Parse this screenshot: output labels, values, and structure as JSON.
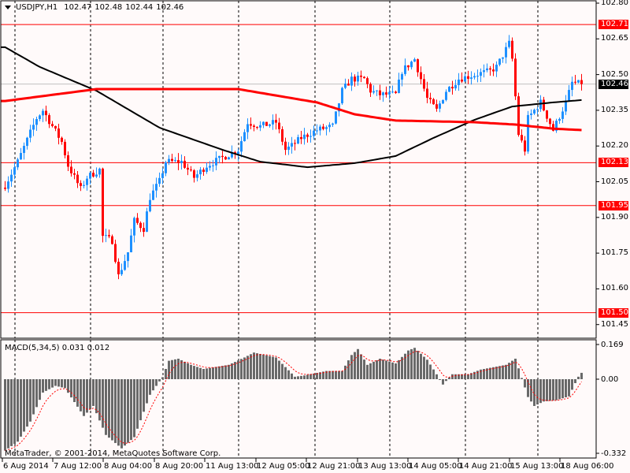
{
  "header": {
    "symbol": "USDJPY,H1",
    "open": "102.47",
    "high": "102.48",
    "low": "102.44",
    "close": "102.46"
  },
  "price_axis": [
    "102.80",
    "102.65",
    "102.50",
    "102.35",
    "102.20",
    "102.05",
    "101.90",
    "101.75",
    "101.60",
    "101.45"
  ],
  "hlines": [
    {
      "label": "102.71",
      "price": 102.71,
      "color": "#ff0000"
    },
    {
      "label": "102.13",
      "price": 102.13,
      "color": "#ff0000"
    },
    {
      "label": "101.95",
      "price": 101.95,
      "color": "#ff0000"
    },
    {
      "label": "101.50",
      "price": 101.5,
      "color": "#ff0000"
    }
  ],
  "current_price": {
    "label": "102.46",
    "price": 102.46,
    "color": "#000000",
    "line_color": "#c0c0c0"
  },
  "time_axis": [
    "6 Aug 2014",
    "7 Aug 12:00",
    "8 Aug 04:00",
    "8 Aug 20:00",
    "11 Aug 13:00",
    "12 Aug 05:00",
    "12 Aug 21:00",
    "13 Aug 13:00",
    "14 Aug 05:00",
    "14 Aug 21:00",
    "15 Aug 13:00",
    "18 Aug 06:00"
  ],
  "macd": {
    "label": "MACD(5,34,5) 0.031 0.012",
    "axis": [
      "0.169",
      "0.00",
      "-0.332"
    ]
  },
  "copyright": "MetaTrader, © 2001-2014, MetaQuotes Software Corp.",
  "colors": {
    "bull": "#1e90ff",
    "bear": "#ff0000",
    "ma_slow": "#ff0000",
    "ma_fast": "#000000",
    "hist": "#696969",
    "signal": "#ff0000",
    "grid": "#000000"
  },
  "chart_data": {
    "type": "candlestick",
    "title": "USDJPY,H1",
    "ylim": [
      101.42,
      102.81
    ],
    "close_anchors": [
      [
        0,
        102.035
      ],
      [
        4,
        102.134
      ],
      [
        10,
        102.317
      ],
      [
        12,
        102.35
      ],
      [
        18,
        102.217
      ],
      [
        20,
        102.118
      ],
      [
        24,
        102.019
      ],
      [
        26,
        102.068
      ],
      [
        30,
        102.101
      ],
      [
        31,
        101.82
      ],
      [
        34,
        101.803
      ],
      [
        36,
        101.654
      ],
      [
        39,
        101.754
      ],
      [
        41,
        101.886
      ],
      [
        44,
        101.853
      ],
      [
        46,
        101.985
      ],
      [
        49,
        102.052
      ],
      [
        51,
        102.134
      ],
      [
        56,
        102.134
      ],
      [
        60,
        102.068
      ],
      [
        64,
        102.118
      ],
      [
        69,
        102.151
      ],
      [
        74,
        102.184
      ],
      [
        77,
        102.3
      ],
      [
        81,
        102.283
      ],
      [
        86,
        102.3
      ],
      [
        89,
        102.184
      ],
      [
        91,
        102.201
      ],
      [
        94,
        102.234
      ],
      [
        99,
        102.267
      ],
      [
        104,
        102.283
      ],
      [
        107,
        102.432
      ],
      [
        110,
        102.482
      ],
      [
        114,
        102.482
      ],
      [
        116,
        102.432
      ],
      [
        119,
        102.416
      ],
      [
        124,
        102.416
      ],
      [
        126,
        102.515
      ],
      [
        130,
        102.565
      ],
      [
        134,
        102.399
      ],
      [
        137,
        102.35
      ],
      [
        140,
        102.432
      ],
      [
        144,
        102.482
      ],
      [
        149,
        102.499
      ],
      [
        154,
        102.515
      ],
      [
        156,
        102.532
      ],
      [
        160,
        102.631
      ],
      [
        161,
        102.565
      ],
      [
        163,
        102.25
      ],
      [
        165,
        102.184
      ],
      [
        166,
        102.317
      ],
      [
        170,
        102.383
      ],
      [
        174,
        102.267
      ],
      [
        178,
        102.383
      ],
      [
        180,
        102.466
      ],
      [
        183,
        102.46
      ]
    ],
    "ma_slow": [
      [
        0,
        102.389
      ],
      [
        29,
        102.439
      ],
      [
        74,
        102.439
      ],
      [
        99,
        102.383
      ],
      [
        111,
        102.333
      ],
      [
        124,
        102.307
      ],
      [
        149,
        102.3
      ],
      [
        162,
        102.29
      ],
      [
        174,
        102.273
      ],
      [
        183,
        102.267
      ]
    ],
    "ma_fast": [
      [
        0,
        102.615
      ],
      [
        11,
        102.532
      ],
      [
        29,
        102.432
      ],
      [
        49,
        102.277
      ],
      [
        69,
        102.184
      ],
      [
        81,
        102.134
      ],
      [
        96,
        102.111
      ],
      [
        111,
        102.128
      ],
      [
        124,
        102.158
      ],
      [
        136,
        102.234
      ],
      [
        149,
        102.31
      ],
      [
        161,
        102.366
      ],
      [
        174,
        102.383
      ],
      [
        183,
        102.393
      ]
    ],
    "macd_hist": [
      [
        0,
        -0.32
      ],
      [
        4,
        -0.28
      ],
      [
        8,
        -0.19
      ],
      [
        12,
        -0.06
      ],
      [
        16,
        -0.03
      ],
      [
        19,
        -0.04
      ],
      [
        25,
        -0.165
      ],
      [
        28,
        -0.12
      ],
      [
        32,
        -0.25
      ],
      [
        37,
        -0.31
      ],
      [
        41,
        -0.26
      ],
      [
        46,
        -0.07
      ],
      [
        50,
        0.01
      ],
      [
        52,
        0.09
      ],
      [
        55,
        0.1
      ],
      [
        59,
        0.07
      ],
      [
        63,
        0.05
      ],
      [
        71,
        0.07
      ],
      [
        76,
        0.106
      ],
      [
        79,
        0.13
      ],
      [
        86,
        0.106
      ],
      [
        92,
        0.012
      ],
      [
        95,
        0.018
      ],
      [
        102,
        0.04
      ],
      [
        107,
        0.04
      ],
      [
        110,
        0.118
      ],
      [
        112,
        0.147
      ],
      [
        115,
        0.07
      ],
      [
        119,
        0.1
      ],
      [
        124,
        0.077
      ],
      [
        128,
        0.14
      ],
      [
        130,
        0.153
      ],
      [
        134,
        0.095
      ],
      [
        138,
        0.0
      ],
      [
        139,
        -0.024
      ],
      [
        142,
        0.024
      ],
      [
        147,
        0.024
      ],
      [
        151,
        0.047
      ],
      [
        159,
        0.07
      ],
      [
        162,
        0.1
      ],
      [
        164,
        0.006
      ],
      [
        166,
        -0.08
      ],
      [
        168,
        -0.12
      ],
      [
        171,
        -0.1
      ],
      [
        175,
        -0.094
      ],
      [
        179,
        -0.077
      ],
      [
        182,
        0.012
      ],
      [
        183,
        0.031
      ]
    ]
  }
}
